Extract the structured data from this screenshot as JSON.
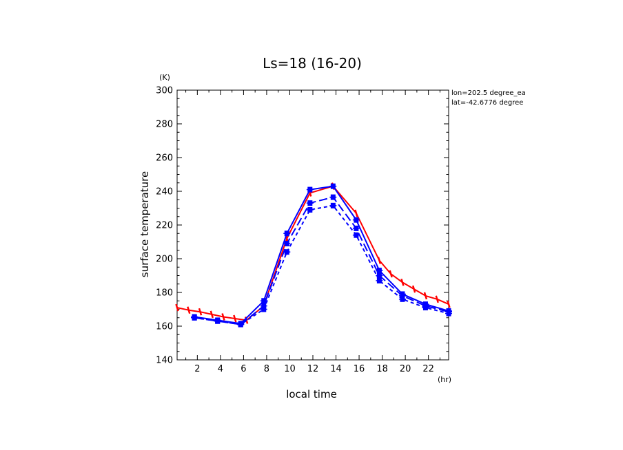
{
  "chart_data": {
    "type": "line",
    "title": "Ls=18 (16-20)",
    "xlabel": "local time",
    "ylabel": "surface temperature",
    "xunit": "(hr)",
    "yunit": "(K)",
    "xlim": [
      0.25,
      23.75
    ],
    "ylim": [
      140,
      300
    ],
    "xticks": [
      2,
      4,
      6,
      8,
      10,
      12,
      14,
      16,
      18,
      20,
      22
    ],
    "yticks": [
      140,
      160,
      180,
      200,
      220,
      240,
      260,
      280,
      300
    ],
    "annotations": [
      "lon=202.5 degree_ea",
      "lat=-42.6776 degree"
    ],
    "series": [
      {
        "color": "#ff0000",
        "style": "solid",
        "x": [
          0.25,
          1.25,
          2.25,
          3.25,
          4.25,
          5.25,
          6.25,
          7.75,
          9.75,
          11.75,
          13.75,
          15.75,
          17.75,
          18.75,
          19.75,
          20.75,
          21.75,
          22.75,
          23.75
        ],
        "y": [
          171,
          169.5,
          168.5,
          167,
          165.5,
          164.5,
          163.5,
          172,
          212,
          239,
          243,
          227,
          199,
          191,
          186,
          182,
          178,
          176,
          173
        ]
      },
      {
        "color": "#0000ff",
        "style": "solid",
        "x": [
          1.75,
          3.75,
          5.75,
          7.75,
          9.75,
          11.75,
          13.75,
          15.75,
          17.75,
          19.75,
          21.75,
          23.75
        ],
        "y": [
          165.5,
          163.5,
          161.5,
          175,
          215,
          241,
          243,
          223,
          193,
          179,
          173,
          169
        ]
      },
      {
        "color": "#0000ff",
        "style": "long-dash",
        "x": [
          1.75,
          3.75,
          5.75,
          7.75,
          9.75,
          11.75,
          13.75,
          15.75,
          17.75,
          19.75,
          21.75,
          23.75
        ],
        "y": [
          165,
          163,
          161,
          172,
          209,
          233,
          236.5,
          218,
          190,
          178,
          172,
          168.5
        ]
      },
      {
        "color": "#0000ff",
        "style": "short-dash",
        "x": [
          1.75,
          3.75,
          5.75,
          7.75,
          9.75,
          11.75,
          13.75,
          15.75,
          17.75,
          19.75,
          21.75,
          23.75
        ],
        "y": [
          165,
          163,
          161,
          170,
          204,
          229,
          231.5,
          214,
          187,
          176,
          171,
          167.5
        ]
      }
    ]
  }
}
